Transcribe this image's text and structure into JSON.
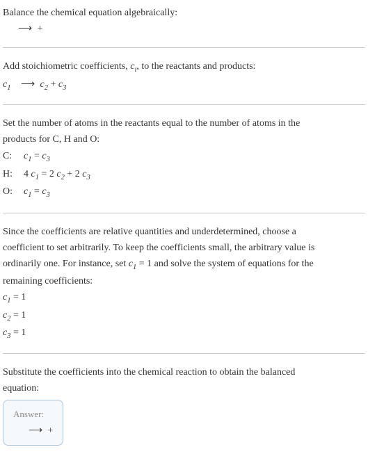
{
  "intro": {
    "line1": "Balance the chemical equation algebraically:",
    "reaction_lhs": "",
    "reaction_arrow": "⟶",
    "reaction_rhs": " + "
  },
  "stoich": {
    "text": "Add stoichiometric coefficients, ",
    "ci": "c",
    "ci_sub": "i",
    "text2": ", to the reactants and products:",
    "c1": "c",
    "c1_sub": "1",
    "arrow": "⟶",
    "c2": "c",
    "c2_sub": "2",
    "plus": " + ",
    "c3": "c",
    "c3_sub": "3"
  },
  "atoms": {
    "text1": "Set the number of atoms in the reactants equal to the number of atoms in the",
    "text2": "products for C, H and O:",
    "rows": {
      "r0": {
        "label": "C:",
        "lhs_coef": "",
        "lhs_c": "c",
        "lhs_sub": "1",
        "eq": " = ",
        "rhs_c": "c",
        "rhs_sub": "3",
        "rhs_extra": ""
      },
      "r1": {
        "label": "H:",
        "lhs_coef": "4 ",
        "lhs_c": "c",
        "lhs_sub": "1",
        "eq": " = ",
        "rhs1_coef": "2 ",
        "rhs1_c": "c",
        "rhs1_sub": "2",
        "plus": " + ",
        "rhs2_coef": "2 ",
        "rhs2_c": "c",
        "rhs2_sub": "3"
      },
      "r2": {
        "label": "O:",
        "lhs_coef": "",
        "lhs_c": "c",
        "lhs_sub": "1",
        "eq": " = ",
        "rhs_c": "c",
        "rhs_sub": "3",
        "rhs_extra": ""
      }
    }
  },
  "solve": {
    "text1": "Since the coefficients are relative quantities and underdetermined, choose a",
    "text2": "coefficient to set arbitrarily. To keep the coefficients small, the arbitrary value is",
    "text3a": "ordinarily one. For instance, set ",
    "c1": "c",
    "c1_sub": "1",
    "text3b": " = 1 and solve the system of equations for the",
    "text4": "remaining coefficients:",
    "rows": {
      "r0": {
        "c": "c",
        "sub": "1",
        "val": " = 1"
      },
      "r1": {
        "c": "c",
        "sub": "2",
        "val": " = 1"
      },
      "r2": {
        "c": "c",
        "sub": "3",
        "val": " = 1"
      }
    }
  },
  "subst": {
    "text1": "Substitute the coefficients into the chemical reaction to obtain the balanced",
    "text2": "equation:"
  },
  "answer": {
    "label": "Answer:",
    "lhs": "",
    "arrow": "⟶",
    "rhs": " + "
  },
  "colors": {
    "text": "#333333",
    "divider": "#cccccc",
    "box_border": "#b0c4d8",
    "box_bg": "#f5f9fc",
    "answer_label": "#8a8a8a"
  }
}
